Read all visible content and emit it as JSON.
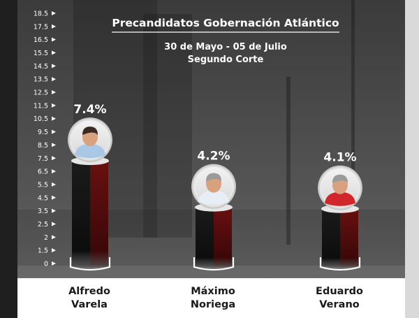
{
  "title": "Precandidatos Gobernación Atlántico",
  "subtitle_line1": "30 de Mayo - 05 de Julio",
  "subtitle_line2": "Segundo Corte",
  "chart_data": {
    "type": "bar",
    "categories": [
      "Alfredo Varela",
      "Máximo Noriega",
      "Eduardo Verano"
    ],
    "name_lines": [
      [
        "Alfredo",
        "Varela"
      ],
      [
        "Máximo",
        "Noriega"
      ],
      [
        "Eduardo",
        "Verano"
      ]
    ],
    "values": [
      7.4,
      4.2,
      4.1
    ],
    "value_labels": [
      "7.4%",
      "4.2%",
      "4.1%"
    ],
    "y_ticks": [
      "0",
      "1.5",
      "2",
      "2.5",
      "3.5",
      "4.5",
      "5.5",
      "6.5",
      "7.5",
      "8.5",
      "9.5",
      "10.5",
      "11.5",
      "12.5",
      "13.5",
      "14.5",
      "15.5",
      "16.5",
      "17.5",
      "18.5"
    ],
    "ylim": [
      0,
      18.5
    ],
    "bar_colors": {
      "front": "#111111",
      "side": "#5a0e0e"
    },
    "shirt_colors": [
      "#a9c8e6",
      "#e8eef5",
      "#d0262c"
    ]
  }
}
